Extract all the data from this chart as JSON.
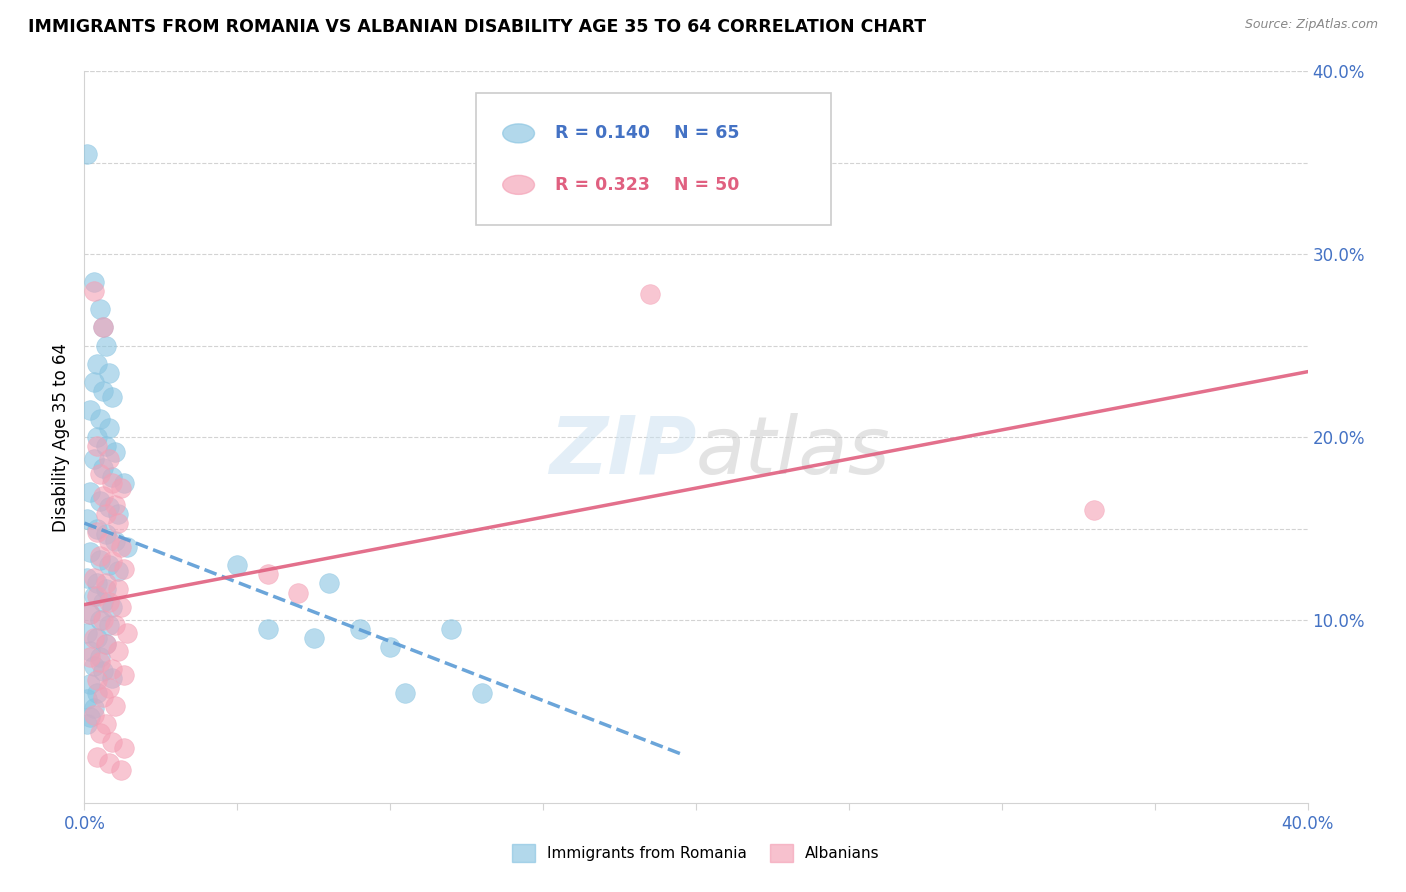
{
  "title": "IMMIGRANTS FROM ROMANIA VS ALBANIAN DISABILITY AGE 35 TO 64 CORRELATION CHART",
  "source": "Source: ZipAtlas.com",
  "ylabel": "Disability Age 35 to 64",
  "xlim": [
    0.0,
    0.4
  ],
  "ylim": [
    0.0,
    0.4
  ],
  "color_romania": "#89c4e1",
  "color_albania": "#f4a0b5",
  "watermark_text": "ZIPatlas",
  "romania_points": [
    [
      0.001,
      0.355
    ],
    [
      0.003,
      0.285
    ],
    [
      0.005,
      0.27
    ],
    [
      0.006,
      0.26
    ],
    [
      0.007,
      0.25
    ],
    [
      0.004,
      0.24
    ],
    [
      0.008,
      0.235
    ],
    [
      0.003,
      0.23
    ],
    [
      0.006,
      0.225
    ],
    [
      0.009,
      0.222
    ],
    [
      0.002,
      0.215
    ],
    [
      0.005,
      0.21
    ],
    [
      0.008,
      0.205
    ],
    [
      0.004,
      0.2
    ],
    [
      0.007,
      0.195
    ],
    [
      0.01,
      0.192
    ],
    [
      0.003,
      0.188
    ],
    [
      0.006,
      0.183
    ],
    [
      0.009,
      0.178
    ],
    [
      0.013,
      0.175
    ],
    [
      0.002,
      0.17
    ],
    [
      0.005,
      0.165
    ],
    [
      0.008,
      0.162
    ],
    [
      0.011,
      0.158
    ],
    [
      0.001,
      0.155
    ],
    [
      0.004,
      0.15
    ],
    [
      0.007,
      0.147
    ],
    [
      0.01,
      0.143
    ],
    [
      0.014,
      0.14
    ],
    [
      0.002,
      0.137
    ],
    [
      0.005,
      0.133
    ],
    [
      0.008,
      0.13
    ],
    [
      0.011,
      0.127
    ],
    [
      0.001,
      0.123
    ],
    [
      0.004,
      0.12
    ],
    [
      0.007,
      0.117
    ],
    [
      0.003,
      0.113
    ],
    [
      0.006,
      0.11
    ],
    [
      0.009,
      0.107
    ],
    [
      0.002,
      0.103
    ],
    [
      0.005,
      0.1
    ],
    [
      0.008,
      0.097
    ],
    [
      0.001,
      0.093
    ],
    [
      0.004,
      0.09
    ],
    [
      0.007,
      0.087
    ],
    [
      0.002,
      0.083
    ],
    [
      0.005,
      0.08
    ],
    [
      0.003,
      0.075
    ],
    [
      0.006,
      0.072
    ],
    [
      0.009,
      0.068
    ],
    [
      0.002,
      0.065
    ],
    [
      0.004,
      0.06
    ],
    [
      0.001,
      0.057
    ],
    [
      0.003,
      0.052
    ],
    [
      0.002,
      0.047
    ],
    [
      0.001,
      0.043
    ],
    [
      0.05,
      0.13
    ],
    [
      0.06,
      0.095
    ],
    [
      0.075,
      0.09
    ],
    [
      0.08,
      0.12
    ],
    [
      0.09,
      0.095
    ],
    [
      0.1,
      0.085
    ],
    [
      0.105,
      0.06
    ],
    [
      0.12,
      0.095
    ],
    [
      0.13,
      0.06
    ]
  ],
  "albania_points": [
    [
      0.003,
      0.28
    ],
    [
      0.006,
      0.26
    ],
    [
      0.004,
      0.195
    ],
    [
      0.008,
      0.188
    ],
    [
      0.005,
      0.18
    ],
    [
      0.009,
      0.175
    ],
    [
      0.012,
      0.172
    ],
    [
      0.006,
      0.168
    ],
    [
      0.01,
      0.163
    ],
    [
      0.007,
      0.158
    ],
    [
      0.011,
      0.153
    ],
    [
      0.004,
      0.148
    ],
    [
      0.008,
      0.143
    ],
    [
      0.012,
      0.14
    ],
    [
      0.005,
      0.135
    ],
    [
      0.009,
      0.132
    ],
    [
      0.013,
      0.128
    ],
    [
      0.003,
      0.123
    ],
    [
      0.007,
      0.12
    ],
    [
      0.011,
      0.117
    ],
    [
      0.004,
      0.113
    ],
    [
      0.008,
      0.11
    ],
    [
      0.012,
      0.107
    ],
    [
      0.002,
      0.103
    ],
    [
      0.006,
      0.1
    ],
    [
      0.01,
      0.097
    ],
    [
      0.014,
      0.093
    ],
    [
      0.003,
      0.09
    ],
    [
      0.007,
      0.087
    ],
    [
      0.011,
      0.083
    ],
    [
      0.002,
      0.08
    ],
    [
      0.005,
      0.077
    ],
    [
      0.009,
      0.073
    ],
    [
      0.013,
      0.07
    ],
    [
      0.004,
      0.067
    ],
    [
      0.008,
      0.063
    ],
    [
      0.006,
      0.058
    ],
    [
      0.01,
      0.053
    ],
    [
      0.003,
      0.048
    ],
    [
      0.007,
      0.043
    ],
    [
      0.005,
      0.038
    ],
    [
      0.009,
      0.033
    ],
    [
      0.013,
      0.03
    ],
    [
      0.004,
      0.025
    ],
    [
      0.008,
      0.022
    ],
    [
      0.012,
      0.018
    ],
    [
      0.06,
      0.125
    ],
    [
      0.07,
      0.115
    ],
    [
      0.185,
      0.278
    ],
    [
      0.33,
      0.16
    ]
  ],
  "romania_line_x": [
    0.0,
    0.195
  ],
  "albania_line_x": [
    0.0,
    0.4
  ],
  "xtick_positions": [
    0.0,
    0.05,
    0.1,
    0.15,
    0.2,
    0.25,
    0.3,
    0.35,
    0.4
  ],
  "xtick_labels": [
    "0.0%",
    "",
    "",
    "",
    "",
    "",
    "",
    "",
    "40.0%"
  ],
  "ytick_positions": [
    0.05,
    0.1,
    0.15,
    0.2,
    0.25,
    0.3,
    0.35,
    0.4
  ],
  "ytick_labels": [
    "",
    "10.0%",
    "",
    "20.0%",
    "",
    "30.0%",
    "",
    "40.0%"
  ]
}
